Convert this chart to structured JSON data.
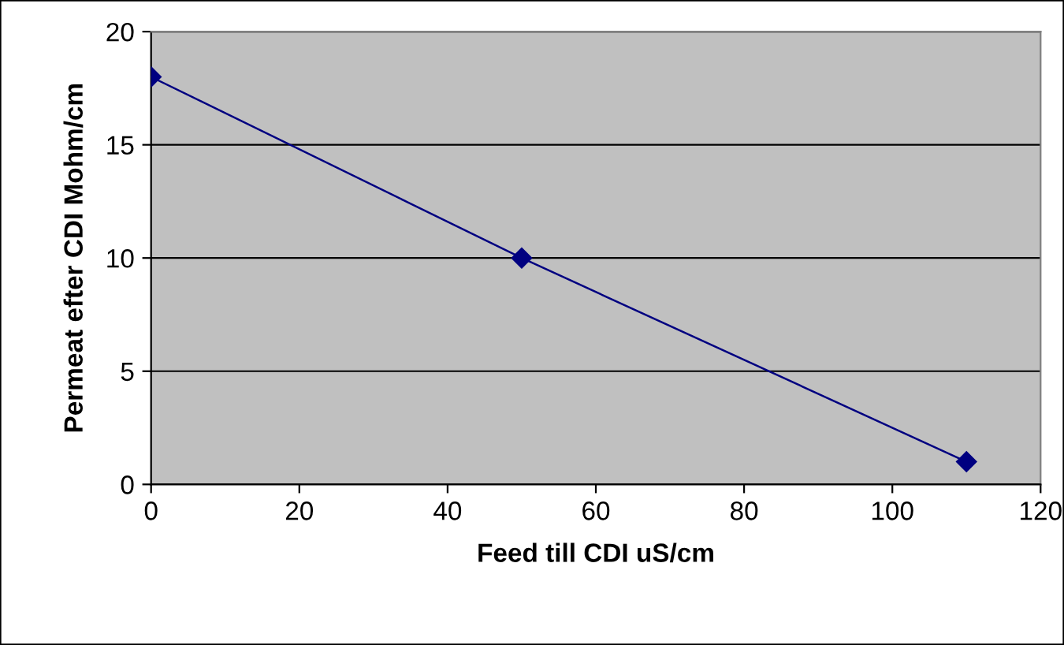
{
  "chart_data": {
    "type": "line",
    "xlabel": "Feed till CDI uS/cm",
    "ylabel": "Permeat efter CDI Mohm/cm",
    "x": [
      0,
      50,
      110
    ],
    "series": [
      {
        "color": "#000080",
        "values": [
          18,
          10,
          1
        ]
      }
    ],
    "xlim": [
      0,
      120
    ],
    "xticks": [
      0,
      20,
      40,
      60,
      80,
      100,
      120
    ],
    "ylim": [
      0,
      20
    ],
    "yticks": [
      0,
      5,
      10,
      15,
      20
    ],
    "grid": "y",
    "legend": false,
    "marker": "diamond",
    "line_style": "solid"
  }
}
